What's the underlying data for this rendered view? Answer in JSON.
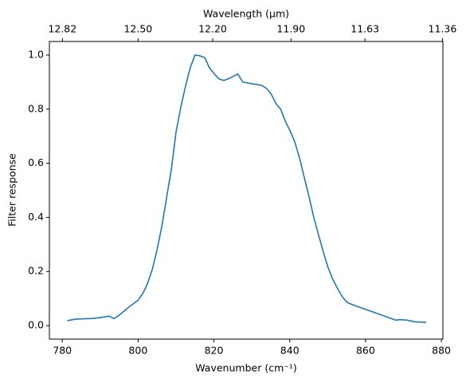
{
  "chart_data": {
    "type": "line",
    "xlabel": "Wavenumber (cm⁻¹)",
    "x2label": "Wavelength (μm)",
    "ylabel": "Filter response",
    "x2_reciprocal_constant": 10000,
    "x": [
      781.3,
      783.5,
      787.7,
      789.8,
      792.3,
      793.6,
      795,
      797,
      798.6,
      800,
      801.3,
      802.5,
      803.8,
      805,
      806.3,
      807.6,
      808.8,
      810,
      811.3,
      812.6,
      813.8,
      815,
      816.3,
      817.6,
      818.8,
      820,
      821.3,
      822.6,
      823.8,
      825,
      826.3,
      827.6,
      830,
      832.6,
      833.9,
      835.1,
      836.4,
      837.6,
      838.9,
      840.1,
      841.4,
      842.6,
      843.9,
      845.1,
      846.4,
      847.6,
      848.9,
      850.1,
      851.4,
      852.7,
      853.9,
      855.2,
      857,
      860,
      863,
      866,
      868,
      869,
      871,
      873,
      876
    ],
    "series": [
      {
        "name": "Filter response",
        "color": "#1f77b4",
        "values": [
          0.018,
          0.024,
          0.026,
          0.029,
          0.035,
          0.026,
          0.038,
          0.062,
          0.079,
          0.094,
          0.12,
          0.156,
          0.21,
          0.28,
          0.37,
          0.48,
          0.58,
          0.715,
          0.81,
          0.89,
          0.955,
          1.0,
          0.997,
          0.99,
          0.953,
          0.932,
          0.912,
          0.906,
          0.912,
          0.92,
          0.93,
          0.9,
          0.894,
          0.888,
          0.876,
          0.856,
          0.82,
          0.8,
          0.753,
          0.72,
          0.676,
          0.618,
          0.544,
          0.476,
          0.397,
          0.335,
          0.27,
          0.215,
          0.17,
          0.135,
          0.106,
          0.085,
          0.075,
          0.06,
          0.045,
          0.03,
          0.02,
          0.022,
          0.02,
          0.014,
          0.012
        ]
      }
    ],
    "xlim": [
      776.6,
      880.4
    ],
    "ylim": [
      -0.05,
      1.05
    ],
    "xticks": [
      780,
      800,
      820,
      840,
      860,
      880
    ],
    "x2ticks": [
      12.82,
      {
        "value": 12.5,
        "label": "12.50"
      },
      {
        "value": 12.2,
        "label": "12.20"
      },
      {
        "value": 11.9,
        "label": "11.90"
      },
      11.63,
      11.36
    ],
    "yticks": [
      {
        "value": 0,
        "label": "0.0"
      },
      0.2,
      0.4,
      0.6,
      0.8,
      {
        "value": 1,
        "label": "1.0"
      }
    ],
    "grid": false
  }
}
